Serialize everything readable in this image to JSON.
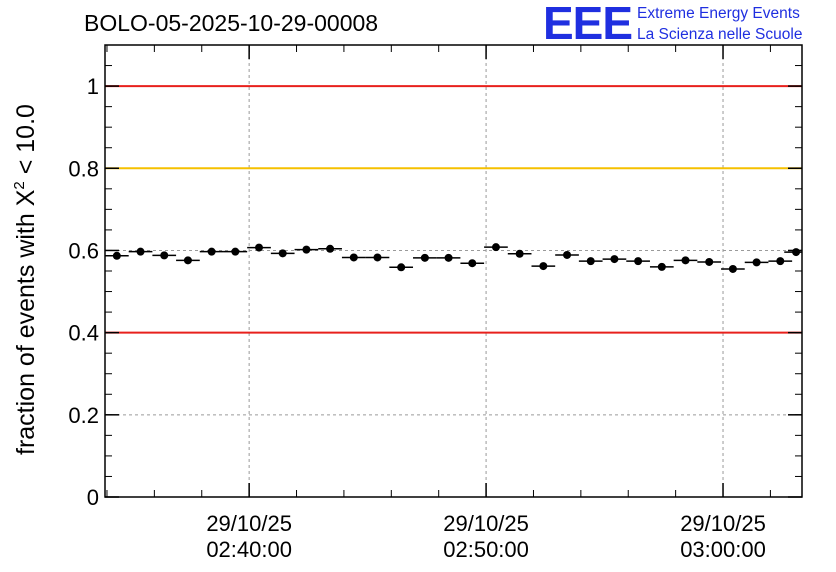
{
  "title": "BOLO-05-2025-10-29-00008",
  "logo": {
    "mark": "EEE",
    "line1": "Extreme Energy Events",
    "line2": "La Scienza nelle Scuole",
    "color": "#1f2fe0"
  },
  "chart_data": {
    "type": "scatter",
    "ylabel_prefix": "fraction of events with ",
    "ylabel_symbol": "X",
    "ylabel_exp": "2",
    "ylabel_suffix": " < 10.0",
    "ylim": [
      0,
      1.1
    ],
    "yticks": [
      0,
      0.2,
      0.4,
      0.6,
      0.8,
      1
    ],
    "ytick_labels": [
      "0",
      "0.2",
      "0.4",
      "0.6",
      "0.8",
      "1"
    ],
    "xlim": [
      "2025-10-29 02:33:55",
      "2025-10-29 03:03:20"
    ],
    "xticks": [
      {
        "at": "2025-10-29 02:40:00",
        "date": "29/10/25",
        "time": "02:40:00"
      },
      {
        "at": "2025-10-29 02:50:00",
        "date": "29/10/25",
        "time": "02:50:00"
      },
      {
        "at": "2025-10-29 03:00:00",
        "date": "29/10/25",
        "time": "03:00:00"
      }
    ],
    "grid": true,
    "reference_lines": [
      {
        "y": 1.0,
        "color": "#e8201c"
      },
      {
        "y": 0.8,
        "color": "#f5c000"
      },
      {
        "y": 0.4,
        "color": "#e8201c"
      }
    ],
    "bin_width_seconds": 60,
    "x": [
      "2025-10-29 02:34:25",
      "2025-10-29 02:35:25",
      "2025-10-29 02:36:25",
      "2025-10-29 02:37:25",
      "2025-10-29 02:38:25",
      "2025-10-29 02:39:25",
      "2025-10-29 02:40:25",
      "2025-10-29 02:41:25",
      "2025-10-29 02:42:25",
      "2025-10-29 02:43:25",
      "2025-10-29 02:44:25",
      "2025-10-29 02:45:25",
      "2025-10-29 02:46:25",
      "2025-10-29 02:47:25",
      "2025-10-29 02:48:25",
      "2025-10-29 02:49:25",
      "2025-10-29 02:50:25",
      "2025-10-29 02:51:25",
      "2025-10-29 02:52:25",
      "2025-10-29 02:53:25",
      "2025-10-29 02:54:25",
      "2025-10-29 02:55:25",
      "2025-10-29 02:56:25",
      "2025-10-29 02:57:25",
      "2025-10-29 02:58:25",
      "2025-10-29 02:59:25",
      "2025-10-29 03:00:25",
      "2025-10-29 03:01:25",
      "2025-10-29 03:02:25",
      "2025-10-29 03:03:05"
    ],
    "y": [
      0.587,
      0.597,
      0.588,
      0.576,
      0.597,
      0.597,
      0.607,
      0.593,
      0.602,
      0.604,
      0.583,
      0.583,
      0.559,
      0.582,
      0.582,
      0.569,
      0.608,
      0.592,
      0.562,
      0.589,
      0.574,
      0.579,
      0.574,
      0.56,
      0.576,
      0.572,
      0.555,
      0.571,
      0.574,
      0.596
    ],
    "y_error": 0.008
  }
}
